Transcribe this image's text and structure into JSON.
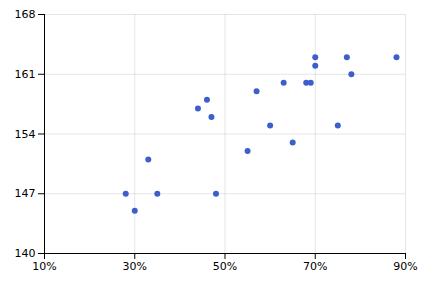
{
  "chart_data": {
    "type": "scatter",
    "x": [
      0.28,
      0.3,
      0.33,
      0.35,
      0.44,
      0.46,
      0.47,
      0.48,
      0.55,
      0.57,
      0.6,
      0.63,
      0.65,
      0.68,
      0.69,
      0.7,
      0.7,
      0.75,
      0.77,
      0.78,
      0.88
    ],
    "values": [
      147,
      145,
      151,
      147,
      157,
      158,
      156,
      147,
      152,
      159,
      155,
      160,
      153,
      160,
      160,
      163,
      162,
      155,
      163,
      161,
      163
    ],
    "color": "#3d5fcc",
    "xlim": [
      0.1,
      0.9
    ],
    "ylim": [
      140,
      168
    ],
    "xticks": [
      {
        "value": 0.1,
        "label": "10%"
      },
      {
        "value": 0.3,
        "label": "30%"
      },
      {
        "value": 0.5,
        "label": "50%"
      },
      {
        "value": 0.7,
        "label": "70%"
      },
      {
        "value": 0.9,
        "label": "90%"
      }
    ],
    "yticks": [
      140,
      147,
      154,
      161,
      168
    ],
    "grid": true
  }
}
